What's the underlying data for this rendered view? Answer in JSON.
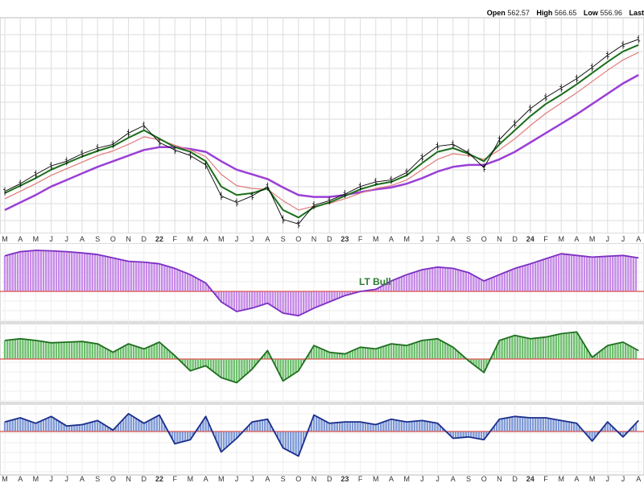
{
  "header": {
    "open_label": "Open",
    "open_value": "562.57",
    "high_label": "High",
    "high_value": "566.65",
    "low_label": "Low",
    "low_value": "556.96",
    "last_label": "Last"
  },
  "annotation": {
    "lt_bull": "LT Bull"
  },
  "colors": {
    "price": "#000000",
    "ma_fast": "#1b6e1b",
    "ma_mid": "#e07a7a",
    "ma_slow": "#9b3fd6",
    "ma_thin": "#6a6ab0",
    "lt_fill": "#c58be6",
    "lt_line": "#7d2fc4",
    "mt_fill": "#6fbf6f",
    "mt_line": "#1f6f1f",
    "st_fill": "#7f9ad6",
    "st_line": "#1a2e8c",
    "zero_line": "#d9534f",
    "grid": "#dddddd"
  },
  "chart_data": {
    "type": "line",
    "x_tick_labels": [
      "M",
      "A",
      "M",
      "J",
      "J",
      "A",
      "S",
      "O",
      "N",
      "D",
      "22",
      "F",
      "M",
      "A",
      "M",
      "J",
      "J",
      "A",
      "S",
      "O",
      "N",
      "D",
      "23",
      "F",
      "M",
      "A",
      "M",
      "J",
      "J",
      "A",
      "S",
      "O",
      "N",
      "D",
      "24",
      "F",
      "M",
      "A",
      "M",
      "J",
      "J",
      "A"
    ],
    "x_tick_bold": [
      "22",
      "23",
      "24"
    ],
    "price_panel": {
      "series": [
        {
          "role": "price",
          "values": [
            400,
            408,
            418,
            427,
            432,
            440,
            446,
            450,
            462,
            470,
            452,
            444,
            438,
            428,
            395,
            388,
            395,
            405,
            370,
            365,
            385,
            390,
            397,
            405,
            410,
            412,
            420,
            436,
            448,
            450,
            441,
            425,
            455,
            472,
            488,
            500,
            510,
            520,
            532,
            545,
            556,
            562
          ]
        },
        {
          "role": "ma_fast",
          "values": [
            398,
            406,
            414,
            423,
            430,
            437,
            443,
            448,
            457,
            465,
            456,
            447,
            442,
            432,
            405,
            396,
            398,
            403,
            380,
            372,
            383,
            388,
            395,
            402,
            407,
            410,
            417,
            430,
            442,
            446,
            440,
            432,
            450,
            465,
            480,
            493,
            503,
            514,
            526,
            538,
            549,
            556
          ]
        },
        {
          "role": "ma_mid",
          "values": [
            392,
            400,
            408,
            417,
            424,
            431,
            438,
            443,
            450,
            458,
            455,
            449,
            444,
            437,
            418,
            406,
            403,
            402,
            390,
            380,
            384,
            387,
            392,
            398,
            403,
            406,
            412,
            423,
            434,
            440,
            438,
            434,
            444,
            456,
            470,
            483,
            494,
            505,
            517,
            529,
            540,
            548
          ]
        },
        {
          "role": "ma_slow",
          "values": [
            380,
            388,
            396,
            405,
            412,
            419,
            426,
            432,
            438,
            444,
            447,
            447,
            445,
            442,
            432,
            423,
            418,
            413,
            404,
            396,
            394,
            394,
            396,
            399,
            402,
            404,
            408,
            414,
            421,
            426,
            428,
            428,
            434,
            442,
            452,
            462,
            472,
            482,
            493,
            504,
            515,
            524
          ]
        }
      ]
    },
    "lt_panel": {
      "type": "area",
      "values": [
        0.85,
        0.95,
        0.98,
        0.97,
        0.95,
        0.92,
        0.88,
        0.8,
        0.72,
        0.7,
        0.66,
        0.55,
        0.4,
        0.2,
        -0.25,
        -0.48,
        -0.4,
        -0.28,
        -0.52,
        -0.58,
        -0.4,
        -0.25,
        -0.1,
        0.0,
        0.05,
        0.25,
        0.4,
        0.52,
        0.58,
        0.55,
        0.45,
        0.25,
        0.4,
        0.55,
        0.66,
        0.78,
        0.9,
        0.86,
        0.82,
        0.84,
        0.86,
        0.8
      ]
    },
    "mt_panel": {
      "type": "area",
      "values": [
        0.55,
        0.6,
        0.55,
        0.48,
        0.5,
        0.52,
        0.45,
        0.2,
        0.45,
        0.3,
        0.5,
        0.1,
        -0.35,
        -0.2,
        -0.55,
        -0.7,
        -0.3,
        0.25,
        -0.65,
        -0.35,
        0.4,
        0.2,
        0.15,
        0.35,
        0.3,
        0.45,
        0.4,
        0.55,
        0.6,
        0.35,
        -0.05,
        -0.4,
        0.55,
        0.7,
        0.6,
        0.65,
        0.75,
        0.8,
        0.05,
        0.4,
        0.5,
        0.25
      ]
    },
    "st_panel": {
      "type": "area",
      "values": [
        0.35,
        0.5,
        0.3,
        0.55,
        0.2,
        0.25,
        0.4,
        0.05,
        0.65,
        0.3,
        0.6,
        -0.45,
        -0.3,
        0.55,
        -0.75,
        -0.25,
        0.35,
        0.45,
        -0.6,
        -0.9,
        0.6,
        0.3,
        0.35,
        0.35,
        0.25,
        0.45,
        0.35,
        0.4,
        0.3,
        -0.25,
        -0.2,
        -0.3,
        0.45,
        0.55,
        0.5,
        0.5,
        0.4,
        0.3,
        -0.35,
        0.35,
        -0.2,
        0.4
      ]
    }
  }
}
